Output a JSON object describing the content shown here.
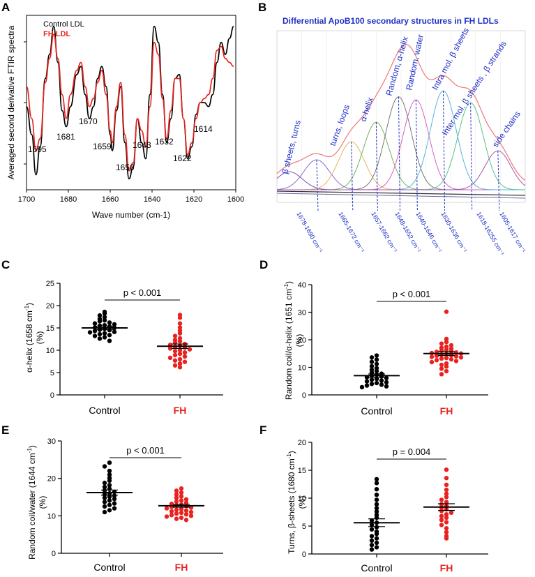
{
  "figure": {
    "colors": {
      "control": "#000000",
      "fh": "#e8231f",
      "blue_text": "#1f2fc7"
    }
  },
  "chart_data": [
    {
      "panel": "A",
      "type": "line",
      "ylabel": "Averaged second derivative FTIR spectra",
      "xlabel": "Wave number (cm-1)",
      "xlim": [
        1700,
        1600
      ],
      "x_ticks": [
        "1700",
        "1680",
        "1660",
        "1640",
        "1620",
        "1600"
      ],
      "legend": [
        "Control LDL",
        "FH LDL"
      ],
      "band_labels": [
        "1695",
        "1681",
        "1670",
        "1659",
        "1650",
        "1643",
        "1632",
        "1622",
        "1614"
      ],
      "series": [
        {
          "name": "Control LDL",
          "color": "#000000",
          "x": [
            1700,
            1697.5,
            1695.5,
            1693.5,
            1691,
            1689,
            1687,
            1685,
            1683,
            1681,
            1679,
            1676,
            1674,
            1672,
            1670,
            1668,
            1666,
            1664,
            1662,
            1660,
            1659,
            1657,
            1655,
            1653,
            1651,
            1649,
            1647,
            1645,
            1643,
            1641,
            1639,
            1637,
            1635,
            1633,
            1631,
            1629,
            1627,
            1625,
            1623,
            1621,
            1619,
            1617,
            1615,
            1613,
            1611,
            1609,
            1607,
            1605,
            1603,
            1601
          ],
          "y": [
            -0.05,
            -0.4,
            -0.9,
            -0.55,
            0.3,
            0.6,
            0.95,
            0.5,
            -0.1,
            -0.3,
            -0.05,
            0.35,
            0.45,
            0.1,
            -0.2,
            -0.05,
            0.3,
            0.45,
            0.2,
            -0.4,
            -0.6,
            -0.1,
            0.2,
            -0.5,
            -0.95,
            -0.8,
            -0.2,
            -0.5,
            -0.7,
            0.1,
            0.95,
            0.75,
            0.1,
            -0.5,
            -0.2,
            0.3,
            0.35,
            -0.2,
            -0.7,
            -0.55,
            -0.15,
            0.0,
            0.0,
            -0.05,
            0.1,
            0.5,
            0.75,
            0.6,
            0.8,
            0.95
          ]
        },
        {
          "name": "FH LDL",
          "color": "#e8231f",
          "x": [
            1700,
            1697.5,
            1695.5,
            1693.5,
            1691,
            1689,
            1687,
            1685,
            1683,
            1681,
            1679,
            1676,
            1674,
            1672,
            1670,
            1668,
            1666,
            1664,
            1662,
            1660,
            1659,
            1657,
            1655,
            1653,
            1651,
            1649,
            1647,
            1645,
            1643,
            1641,
            1639,
            1637,
            1635,
            1633,
            1631,
            1629,
            1627,
            1625,
            1623,
            1621,
            1619,
            1617,
            1615,
            1613,
            1611,
            1609,
            1607,
            1605,
            1603,
            1601
          ],
          "y": [
            0.2,
            -0.2,
            -0.6,
            -0.45,
            0.25,
            0.55,
            0.85,
            0.55,
            0.1,
            -0.2,
            0.1,
            0.4,
            0.5,
            0.2,
            -0.05,
            0.05,
            0.25,
            0.4,
            0.1,
            -0.35,
            -0.5,
            -0.05,
            0.25,
            -0.4,
            -0.85,
            -0.75,
            -0.2,
            -0.35,
            -0.55,
            -0.05,
            0.75,
            0.6,
            0.05,
            -0.45,
            -0.1,
            0.3,
            0.3,
            -0.2,
            -0.65,
            -0.5,
            -0.2,
            0.0,
            0.05,
            0.1,
            0.3,
            0.65,
            0.7,
            0.55,
            0.5,
            0.45
          ]
        }
      ]
    },
    {
      "panel": "B",
      "type": "line",
      "title": "Differential ApoB100 secondary structures in FH LDLs",
      "peak_labels": [
        "β sheets, turns",
        "turns, loops",
        "α-helix",
        "Random, α-helix",
        "Random, water",
        "Intra mol. β sheets",
        "Inter mol. β sheets , β strands",
        "side chains"
      ],
      "ranges": [
        "1678-1690 cm⁻¹",
        "1665-1672 cm⁻¹",
        "1657-1662 cm⁻¹",
        "1648-1652 cm⁻¹",
        "1640-1646 cm⁻¹",
        "1630-1636 cm⁻¹",
        "1618-16255 cm⁻¹",
        "1605-1617 cm⁻¹"
      ],
      "components": [
        {
          "center": 1695,
          "height": 0.12,
          "color": "#7b4fb3"
        },
        {
          "center": 1684,
          "height": 0.2,
          "color": "#8a6ad0"
        },
        {
          "center": 1670,
          "height": 0.32,
          "color": "#e8b35a"
        },
        {
          "center": 1660,
          "height": 0.45,
          "color": "#6fb35a"
        },
        {
          "center": 1651,
          "height": 0.62,
          "color": "#777777"
        },
        {
          "center": 1644,
          "height": 0.6,
          "color": "#d45fc4"
        },
        {
          "center": 1633,
          "height": 0.66,
          "color": "#5ab3d9"
        },
        {
          "center": 1622,
          "height": 0.58,
          "color": "#56c28a"
        },
        {
          "center": 1611,
          "height": 0.26,
          "color": "#a05ab3"
        }
      ]
    },
    {
      "panel": "C",
      "type": "scatter",
      "ylabel_main": "α-helix (1658 cm",
      "ylabel_sup": "-1",
      "ylabel_tail": ")",
      "ylabel_unit": "(%)",
      "ylim": [
        0,
        25
      ],
      "y_ticks": [
        "0",
        "5",
        "10",
        "15",
        "20",
        "25"
      ],
      "categories": [
        "Control",
        "FH"
      ],
      "p_value": "p < 0.001",
      "series": [
        {
          "name": "Control",
          "mean": 15.0,
          "sem": 0.4,
          "values": [
            18.6,
            18.2,
            17.8,
            17.4,
            17.0,
            16.7,
            16.5,
            16.2,
            16.0,
            15.8,
            15.6,
            15.5,
            15.3,
            15.1,
            15.0,
            14.8,
            14.6,
            14.5,
            14.3,
            14.1,
            14.0,
            13.8,
            13.6,
            13.4,
            13.2,
            12.9,
            12.6,
            12.1
          ]
        },
        {
          "name": "FH",
          "mean": 10.9,
          "sem": 0.5,
          "values": [
            17.9,
            17.3,
            16.0,
            15.1,
            14.4,
            13.8,
            13.2,
            12.7,
            12.3,
            12.0,
            11.7,
            11.4,
            11.2,
            11.0,
            10.8,
            10.6,
            10.4,
            10.2,
            10.0,
            9.8,
            9.5,
            9.2,
            8.9,
            8.6,
            8.3,
            8.0,
            7.7,
            7.4,
            7.0,
            6.6,
            6.2
          ]
        }
      ]
    },
    {
      "panel": "D",
      "type": "scatter",
      "ylabel_main": "Random coil/α-helix (1651 cm",
      "ylabel_sup": "-1",
      "ylabel_tail": ")",
      "ylabel_unit": "(%)",
      "ylim": [
        0,
        40
      ],
      "y_ticks": [
        "0",
        "10",
        "20",
        "30",
        "40"
      ],
      "categories": [
        "Control",
        "FH"
      ],
      "p_value": "p < 0.001",
      "series": [
        {
          "name": "Control",
          "mean": 7.0,
          "sem": 0.6,
          "values": [
            14.3,
            13.6,
            12.8,
            12.0,
            11.2,
            10.4,
            9.7,
            9.1,
            8.6,
            8.1,
            7.7,
            7.3,
            7.0,
            6.7,
            6.4,
            6.1,
            5.8,
            5.5,
            5.2,
            4.9,
            4.6,
            4.3,
            4.0,
            3.7,
            3.4,
            3.1,
            2.8
          ]
        },
        {
          "name": "FH",
          "mean": 15.0,
          "sem": 0.7,
          "values": [
            30.2,
            20.3,
            19.2,
            18.6,
            18.0,
            17.5,
            17.1,
            16.8,
            16.4,
            16.1,
            15.8,
            15.6,
            15.4,
            15.2,
            15.0,
            14.8,
            14.6,
            14.4,
            14.2,
            14.0,
            13.8,
            13.6,
            13.4,
            13.2,
            12.9,
            12.6,
            12.3,
            11.9,
            11.4,
            10.9,
            10.3,
            9.5,
            8.6,
            7.5
          ]
        }
      ]
    },
    {
      "panel": "E",
      "type": "scatter",
      "ylabel_main": "Random coil/water (1644 cm",
      "ylabel_sup": "-1",
      "ylabel_tail": ")",
      "ylabel_unit": "(%)",
      "ylim": [
        0,
        30
      ],
      "y_ticks": [
        "0",
        "10",
        "20",
        "30"
      ],
      "categories": [
        "Control",
        "FH"
      ],
      "p_value": "p < 0.001",
      "series": [
        {
          "name": "Control",
          "mean": 16.2,
          "sem": 0.7,
          "values": [
            24.2,
            23.2,
            22.0,
            21.0,
            20.1,
            19.4,
            18.8,
            18.2,
            17.7,
            17.2,
            16.8,
            16.4,
            16.0,
            15.7,
            15.4,
            15.1,
            14.8,
            14.5,
            14.1,
            13.7,
            13.3,
            12.9,
            12.5,
            12.0,
            11.5,
            11.0
          ]
        },
        {
          "name": "FH",
          "mean": 12.7,
          "sem": 0.4,
          "values": [
            17.3,
            16.7,
            16.2,
            15.7,
            15.2,
            14.8,
            14.4,
            14.1,
            13.8,
            13.5,
            13.2,
            13.0,
            12.8,
            12.6,
            12.4,
            12.2,
            12.0,
            11.8,
            11.6,
            11.4,
            11.2,
            11.0,
            10.8,
            10.6,
            10.4,
            10.2,
            10.0,
            9.8,
            9.5,
            9.2,
            8.9
          ]
        }
      ]
    },
    {
      "panel": "F",
      "type": "scatter",
      "ylabel_main": "Turns, β-sheets (1680 cm",
      "ylabel_sup": "-1",
      "ylabel_tail": ")",
      "ylabel_unit": "(%)",
      "ylim": [
        0,
        20
      ],
      "y_ticks": [
        "0",
        "5",
        "10",
        "15",
        "20"
      ],
      "categories": [
        "Control",
        "FH"
      ],
      "p_value": "p = 0.004",
      "series": [
        {
          "name": "Control",
          "mean": 5.6,
          "sem": 0.7,
          "values": [
            13.4,
            12.7,
            11.6,
            10.6,
            9.7,
            8.9,
            8.2,
            7.6,
            7.0,
            6.5,
            6.0,
            5.6,
            5.2,
            4.8,
            4.4,
            4.0,
            3.6,
            3.2,
            2.8,
            2.4,
            2.0,
            1.6,
            1.2,
            0.8
          ]
        },
        {
          "name": "FH",
          "mean": 8.4,
          "sem": 0.6,
          "values": [
            15.1,
            13.6,
            12.4,
            11.5,
            10.8,
            10.2,
            9.7,
            9.3,
            8.9,
            8.6,
            8.3,
            8.0,
            7.7,
            7.4,
            7.1,
            6.8,
            6.5,
            6.1,
            5.7,
            5.2,
            4.6,
            3.9,
            3.2,
            2.8
          ]
        }
      ]
    }
  ]
}
